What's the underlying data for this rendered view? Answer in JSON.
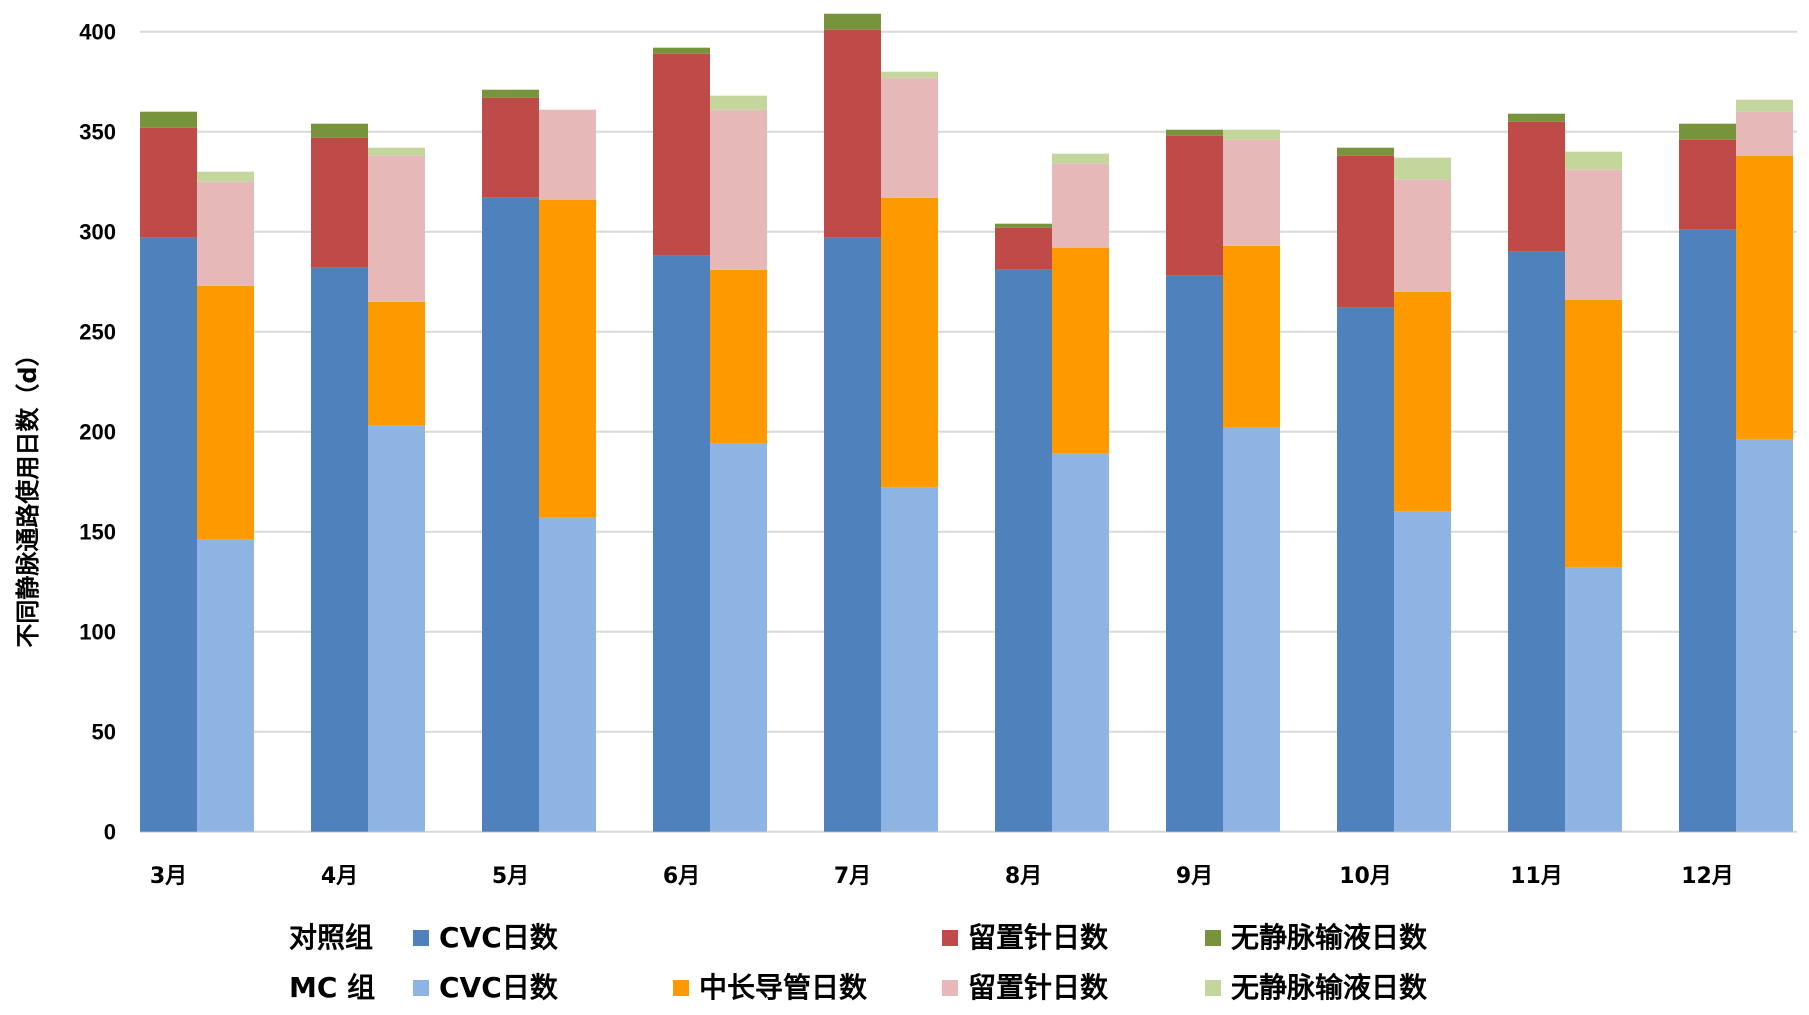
{
  "chart_data": {
    "type": "bar",
    "stacked": true,
    "grouped": true,
    "title": "",
    "xlabel": "",
    "ylabel": "不同静脉通路使用日数（d）",
    "ylim": [
      0,
      400
    ],
    "yticks": [
      0,
      50,
      100,
      150,
      200,
      250,
      300,
      350,
      400
    ],
    "grid": true,
    "legend_position": "bottom",
    "categories": [
      "3月",
      "4月",
      "5月",
      "6月",
      "7月",
      "8月",
      "9月",
      "10月",
      "11月",
      "12月"
    ],
    "groups": [
      {
        "name": "对照组",
        "series": [
          {
            "name": "CVC日数",
            "color": "#4F81BD",
            "values": [
              297,
              282,
              317,
              288,
              297,
              281,
              278,
              262,
              290,
              301
            ]
          },
          {
            "name": "留置针日数",
            "color": "#BE4B48",
            "values": [
              55,
              65,
              50,
              101,
              104,
              21,
              70,
              76,
              65,
              45
            ]
          },
          {
            "name": "无静脉输液日数",
            "color": "#77933C",
            "values": [
              8,
              7,
              4,
              3,
              8,
              2,
              3,
              4,
              4,
              8
            ]
          }
        ]
      },
      {
        "name": "MC 组",
        "series": [
          {
            "name": "CVC日数",
            "color": "#8EB4E3",
            "values": [
              146,
              203,
              157,
              194,
              172,
              189,
              202,
              160,
              132,
              196
            ]
          },
          {
            "name": "中长导管日数",
            "color": "#FF9900",
            "values": [
              127,
              62,
              159,
              87,
              145,
              103,
              91,
              110,
              134,
              142
            ]
          },
          {
            "name": "留置针日数",
            "color": "#E6B9B8",
            "values": [
              52,
              73,
              45,
              80,
              60,
              42,
              53,
              56,
              65,
              22
            ]
          },
          {
            "name": "无静脉输液日数",
            "color": "#C3D69B",
            "values": [
              5,
              4,
              0,
              7,
              3,
              5,
              5,
              11,
              9,
              6
            ]
          }
        ]
      }
    ]
  },
  "legend": {
    "rows": [
      {
        "group_label": "对照组",
        "items": [
          {
            "label": "CVC日数",
            "color": "#4F81BD",
            "slot": 0
          },
          {
            "label": "留置针日数",
            "color": "#BE4B48",
            "slot": 2
          },
          {
            "label": "无静脉输液日数",
            "color": "#77933C",
            "slot": 3
          }
        ]
      },
      {
        "group_label": "MC 组",
        "items": [
          {
            "label": "CVC日数",
            "color": "#8EB4E3",
            "slot": 0
          },
          {
            "label": "中长导管日数",
            "color": "#FF9900",
            "slot": 1
          },
          {
            "label": "留置针日数",
            "color": "#E6B9B8",
            "slot": 2
          },
          {
            "label": "无静脉输液日数",
            "color": "#C3D69B",
            "slot": 3
          }
        ]
      }
    ]
  }
}
